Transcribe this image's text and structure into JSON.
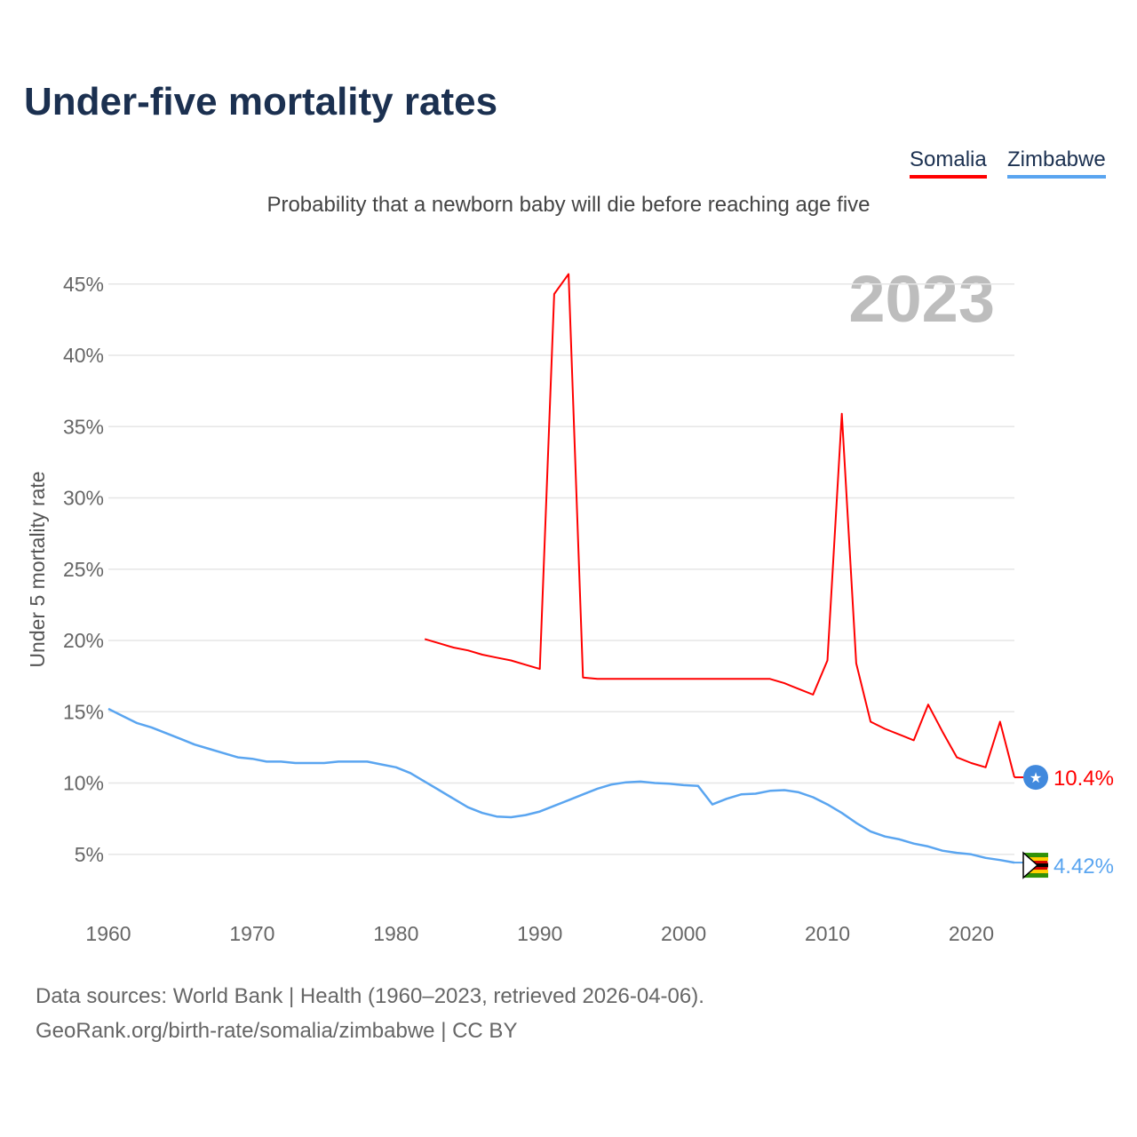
{
  "title": "Under-five mortality rates",
  "subtitle": "Probability that a newborn baby will die before reaching age five",
  "year_badge": "2023",
  "footer": {
    "line1": "Data sources: World Bank | Health (1960–2023, retrieved 2026-04-06).",
    "line2": "GeoRank.org/birth-rate/somalia/zimbabwe | CC BY"
  },
  "chart_data": {
    "type": "line",
    "title": "Under-five mortality rates",
    "xlabel": "",
    "ylabel": "Under 5 mortality rate",
    "xlim": [
      1960,
      2023
    ],
    "ylim": [
      0,
      47
    ],
    "x_ticks": [
      "1960",
      "1970",
      "1980",
      "1990",
      "2000",
      "2010",
      "2020"
    ],
    "y_ticks": [
      "5%",
      "10%",
      "15%",
      "20%",
      "25%",
      "30%",
      "35%",
      "40%",
      "45%"
    ],
    "grid": true,
    "legend_placement": "top-right",
    "series": [
      {
        "name": "Somalia",
        "color": "#ff0000",
        "start_year": 1982,
        "end_label": "10.4%",
        "values": [
          20.1,
          19.8,
          19.5,
          19.3,
          19.0,
          18.8,
          18.6,
          18.3,
          18.0,
          44.3,
          45.7,
          17.4,
          17.3,
          17.3,
          17.3,
          17.3,
          17.3,
          17.3,
          17.3,
          17.3,
          17.3,
          17.3,
          17.3,
          17.3,
          17.3,
          17.0,
          16.6,
          16.2,
          18.6,
          35.9,
          18.4,
          14.3,
          13.8,
          13.4,
          13.0,
          15.5,
          13.6,
          11.8,
          11.4,
          11.1,
          14.3,
          10.4
        ]
      },
      {
        "name": "Zimbabwe",
        "color": "#5aa5f0",
        "start_year": 1960,
        "end_label": "4.42%",
        "values": [
          15.2,
          14.7,
          14.2,
          13.9,
          13.5,
          13.1,
          12.7,
          12.4,
          12.1,
          11.8,
          11.7,
          11.5,
          11.5,
          11.4,
          11.4,
          11.4,
          11.5,
          11.5,
          11.5,
          11.3,
          11.1,
          10.7,
          10.1,
          9.5,
          8.9,
          8.3,
          7.9,
          7.65,
          7.6,
          7.75,
          8.0,
          8.4,
          8.8,
          9.2,
          9.6,
          9.9,
          10.05,
          10.1,
          10.0,
          9.95,
          9.85,
          9.8,
          8.5,
          8.9,
          9.2,
          9.25,
          9.45,
          9.5,
          9.35,
          9.0,
          8.5,
          7.9,
          7.2,
          6.6,
          6.25,
          6.05,
          5.75,
          5.55,
          5.25,
          5.1,
          5.0,
          4.75,
          4.6,
          4.42
        ]
      }
    ]
  }
}
